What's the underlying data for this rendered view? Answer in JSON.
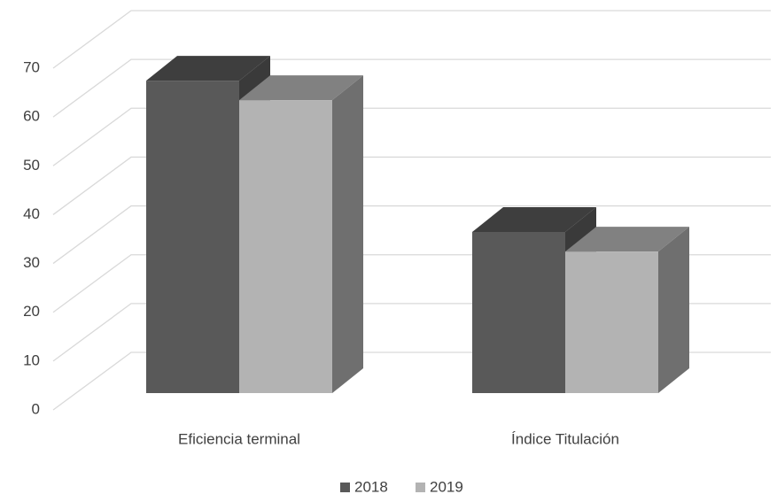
{
  "chart_data": {
    "type": "bar3d",
    "categories": [
      "Eficiencia terminal",
      "Índice Titulación"
    ],
    "series": [
      {
        "name": "2018",
        "color": "#595959",
        "values": [
          64,
          33
        ]
      },
      {
        "name": "2019",
        "color": "#b3b3b3",
        "values": [
          60,
          29
        ]
      }
    ],
    "ylim": [
      0,
      70
    ],
    "yticks": [
      0,
      10,
      20,
      30,
      40,
      50,
      60,
      70
    ],
    "grid": true,
    "legend": "bottom"
  }
}
